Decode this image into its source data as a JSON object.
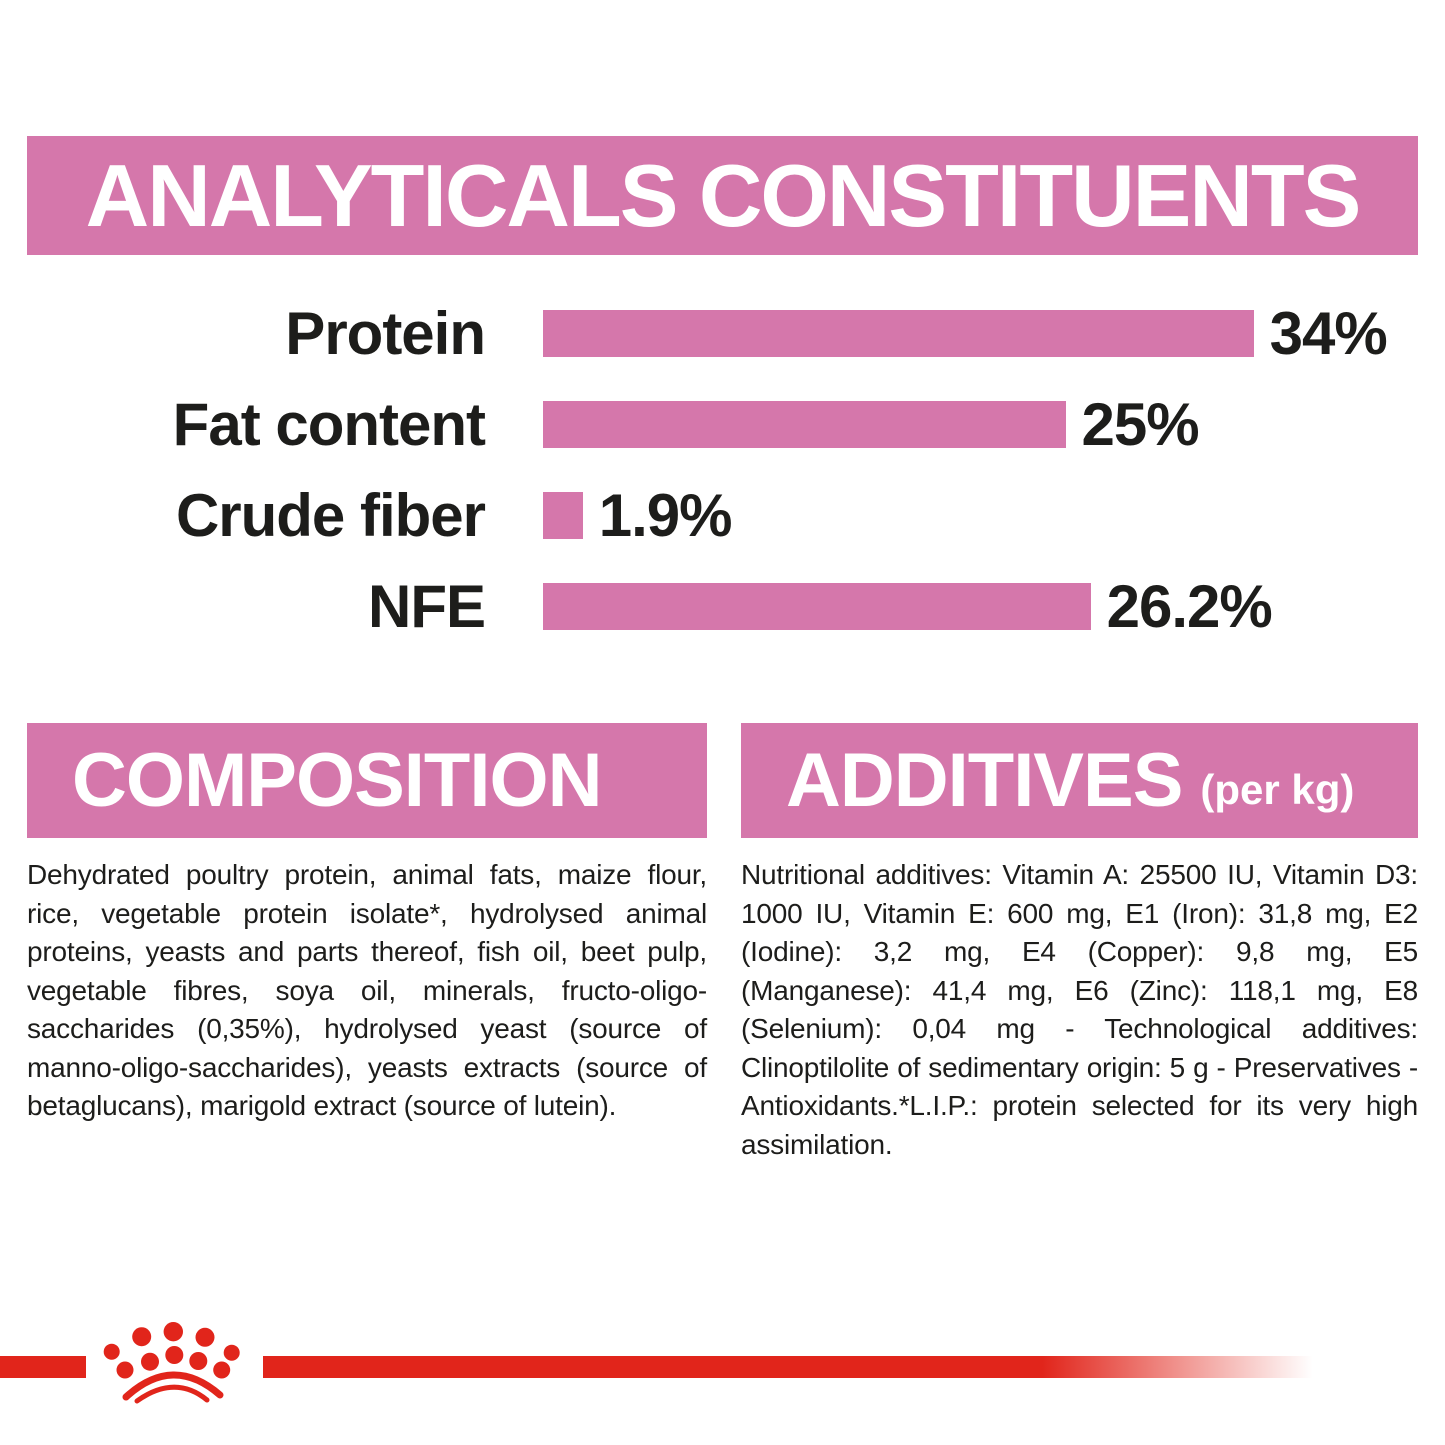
{
  "colors": {
    "pink": "#d577ab",
    "red": "#e1251b",
    "text": "#1d1d1b",
    "banner_text": "#ffffff"
  },
  "analyticals": {
    "title": "ANALYTICALS CONSTITUENTS"
  },
  "chart_data": {
    "type": "bar",
    "orientation": "horizontal",
    "title": "ANALYTICALS CONSTITUENTS",
    "categories": [
      "Protein",
      "Fat content",
      "Crude fiber",
      "NFE"
    ],
    "values": [
      34,
      25,
      1.9,
      26.2
    ],
    "value_labels": [
      "34%",
      "25%",
      "1.9%",
      "26.2%"
    ],
    "unit": "%",
    "xlim": [
      0,
      34
    ],
    "grid": false,
    "legend": false,
    "bar_color": "#d577ab"
  },
  "composition": {
    "title": "COMPOSITION",
    "body": "Dehydrated poultry protein, animal fats, maize flour, rice, vegetable protein isolate*, hydrolysed animal proteins, yeasts and parts thereof, fish oil, beet pulp, vegetable fibres, soya oil, minerals, fructo-oligo-saccharides (0,35%), hydrolysed yeast (source of manno-oligo-saccharides), yeasts extracts (source of betaglucans), marigold extract (source of lutein)."
  },
  "additives": {
    "title": "ADDITIVES",
    "title_suffix": "(per kg)",
    "body": "Nutritional additives: Vitamin A: 25500 IU, Vitamin D3: 1000 IU, Vitamin E: 600 mg, E1 (Iron): 31,8 mg, E2 (Iodine): 3,2 mg, E4 (Copper): 9,8 mg, E5 (Manganese): 41,4 mg, E6 (Zinc): 118,1 mg, E8 (Selenium): 0,04 mg - Technological additives: Clinoptilolite of sedimentary origin: 5 g - Preservatives - Antioxidants.*L.I.P.: protein selected for its very high assimilation."
  },
  "footer": {
    "logo": "royal-canin-crown-logo"
  }
}
